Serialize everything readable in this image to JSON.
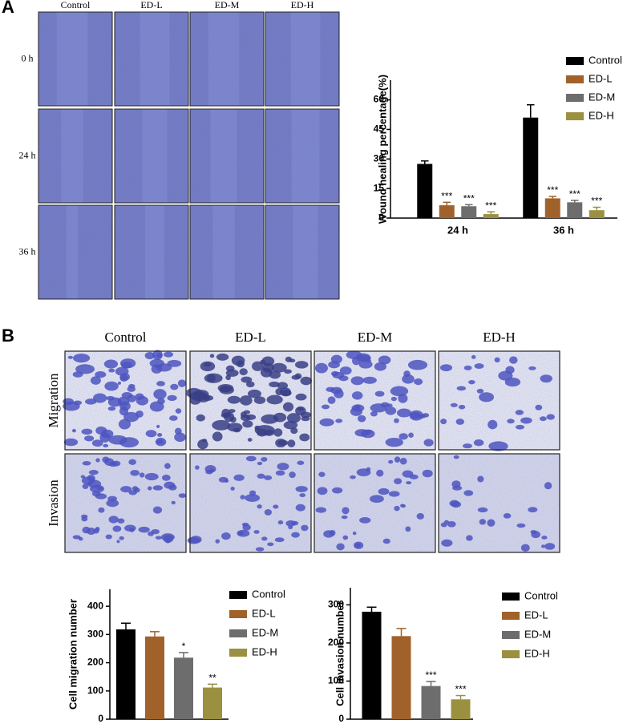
{
  "panel_labels": [
    "A",
    "B"
  ],
  "panel_a": {
    "columns": [
      "Control",
      "ED-L",
      "ED-M",
      "ED-H"
    ],
    "rows": [
      "0 h",
      "24 h",
      "36 h"
    ]
  },
  "panel_b": {
    "columns": [
      "Control",
      "ED-L",
      "ED-M",
      "ED-H"
    ],
    "rows": [
      "Migration",
      "Invasion"
    ]
  },
  "chart_data": [
    {
      "type": "bar",
      "y_label": "Wound healing percentage(%)",
      "categories": [
        "24 h",
        "36 h"
      ],
      "ylim": [
        0,
        70
      ],
      "yticks": [
        0,
        15,
        30,
        45,
        60
      ],
      "series": [
        {
          "name": "Control",
          "color": "#000000",
          "values": [
            27.5,
            51
          ],
          "errors": [
            1.5,
            6.5
          ],
          "annotations": [
            null,
            null
          ]
        },
        {
          "name": "ED-L",
          "color": "#a0622a",
          "values": [
            6.5,
            10
          ],
          "errors": [
            1.5,
            1
          ],
          "annotations": [
            "***",
            "***"
          ]
        },
        {
          "name": "ED-M",
          "color": "#6d6d6d",
          "values": [
            6,
            8
          ],
          "errors": [
            0.8,
            1
          ],
          "annotations": [
            "***",
            "***"
          ]
        },
        {
          "name": "ED-H",
          "color": "#9a9040",
          "values": [
            2,
            4
          ],
          "errors": [
            1.2,
            1.5
          ],
          "annotations": [
            "***",
            "***"
          ]
        }
      ]
    },
    {
      "type": "bar",
      "y_label": "Cell migration number",
      "categories": [
        null
      ],
      "ylim": [
        0,
        460
      ],
      "yticks": [
        0,
        100,
        200,
        300,
        400
      ],
      "series": [
        {
          "name": "Control",
          "color": "#000000",
          "values": [
            318
          ],
          "errors": [
            22
          ],
          "annotations": [
            null
          ]
        },
        {
          "name": "ED-L",
          "color": "#a0622a",
          "values": [
            293
          ],
          "errors": [
            17
          ],
          "annotations": [
            null
          ]
        },
        {
          "name": "ED-M",
          "color": "#6d6d6d",
          "values": [
            218
          ],
          "errors": [
            18
          ],
          "annotations": [
            "*"
          ]
        },
        {
          "name": "ED-H",
          "color": "#9a9040",
          "values": [
            112
          ],
          "errors": [
            12
          ],
          "annotations": [
            "**"
          ]
        }
      ]
    },
    {
      "type": "bar",
      "y_label": "Cell invasion number",
      "categories": [
        null
      ],
      "ylim": [
        0,
        345
      ],
      "yticks": [
        0,
        100,
        200,
        300
      ],
      "series": [
        {
          "name": "Control",
          "color": "#000000",
          "values": [
            282
          ],
          "errors": [
            12
          ],
          "annotations": [
            null
          ]
        },
        {
          "name": "ED-L",
          "color": "#a0622a",
          "values": [
            218
          ],
          "errors": [
            20
          ],
          "annotations": [
            null
          ]
        },
        {
          "name": "ED-M",
          "color": "#6d6d6d",
          "values": [
            87
          ],
          "errors": [
            12
          ],
          "annotations": [
            "***"
          ]
        },
        {
          "name": "ED-H",
          "color": "#9a9040",
          "values": [
            52
          ],
          "errors": [
            10
          ],
          "annotations": [
            "***"
          ]
        }
      ]
    }
  ]
}
